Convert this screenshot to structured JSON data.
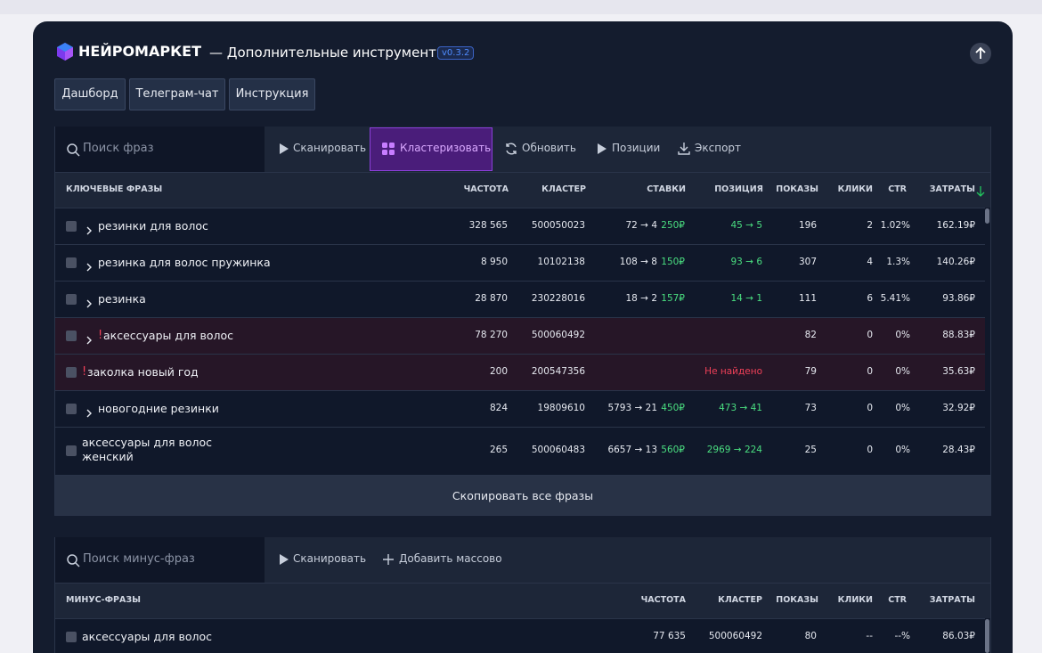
{
  "header": {
    "brand": "НЕЙРОМАРКЕТ",
    "subtitle": "— Дополнительные инструменты",
    "version": "v0.3.2"
  },
  "tabs": [
    "Дашборд",
    "Телеграм-чат",
    "Инструкция"
  ],
  "keywords": {
    "search_placeholder": "Поиск фраз",
    "actions": [
      "Сканировать",
      "Кластеризовать",
      "Обновить",
      "Позиции",
      "Экспорт"
    ],
    "active_action": 1,
    "columns": [
      "КЛЮЧЕВЫЕ ФРАЗЫ",
      "ЧАСТОТА",
      "КЛАСТЕР",
      "СТАВКИ",
      "ПОЗИЦИЯ",
      "ПОКАЗЫ",
      "КЛИКИ",
      "CTR",
      "ЗАТРАТЫ"
    ],
    "rows": [
      {
        "phrase": "резинки для волос",
        "expand": true,
        "freq": "328 565",
        "cluster": "500050023",
        "bid": "72 → 4",
        "bid_price": "250₽",
        "position": "45 → 5",
        "shows": "196",
        "clicks": "2",
        "ctr": "1.02%",
        "cost": "162.19₽"
      },
      {
        "phrase": "резинка для волос пружинка",
        "expand": true,
        "freq": "8 950",
        "cluster": "10102138",
        "bid": "108 → 8",
        "bid_price": "150₽",
        "position": "93 → 6",
        "shows": "307",
        "clicks": "4",
        "ctr": "1.3%",
        "cost": "140.26₽"
      },
      {
        "phrase": "резинка",
        "expand": true,
        "freq": "28 870",
        "cluster": "230228016",
        "bid": "18 → 2",
        "bid_price": "157₽",
        "position": "14 → 1",
        "shows": "111",
        "clicks": "6",
        "ctr": "5.41%",
        "cost": "93.86₽"
      },
      {
        "phrase": "аксессуары для волос",
        "expand": true,
        "mark": "!",
        "freq": "78 270",
        "cluster": "500060492",
        "shows": "82",
        "clicks": "0",
        "ctr": "0%",
        "cost": "88.83₽"
      },
      {
        "phrase": "заколка новый год",
        "expand": false,
        "mark": "!",
        "freq": "200",
        "cluster": "200547356",
        "position": "Не найдено",
        "position_color": "#ef4058",
        "shows": "79",
        "clicks": "0",
        "ctr": "0%",
        "cost": "35.63₽"
      },
      {
        "phrase": "новогодние резинки",
        "expand": true,
        "freq": "824",
        "cluster": "19809610",
        "bid": "5793 → 21",
        "bid_price": "450₽",
        "position": "473 → 41",
        "shows": "73",
        "clicks": "0",
        "ctr": "0%",
        "cost": "32.92₽"
      },
      {
        "phrase": "аксессуары для волос женский",
        "expand": false,
        "freq": "265",
        "cluster": "500060483",
        "bid": "6657 → 13",
        "bid_price": "560₽",
        "position": "2969 → 224",
        "shows": "25",
        "clicks": "0",
        "ctr": "0%",
        "cost": "28.43₽"
      }
    ],
    "footer": "Скопировать все фразы"
  },
  "minus": {
    "search_placeholder": "Поиск минус-фраз",
    "actions": [
      "Сканировать",
      "Добавить массово"
    ],
    "columns": [
      "МИНУС-ФРАЗЫ",
      "ЧАСТОТА",
      "КЛАСТЕР",
      "ПОКАЗЫ",
      "КЛИКИ",
      "CTR",
      "ЗАТРАТЫ"
    ],
    "rows": [
      {
        "phrase": "аксессуары для волос",
        "freq": "77 635",
        "cluster": "500060492",
        "shows": "80",
        "clicks": "--",
        "ctr": "--%",
        "cost": "86.03₽"
      }
    ]
  }
}
